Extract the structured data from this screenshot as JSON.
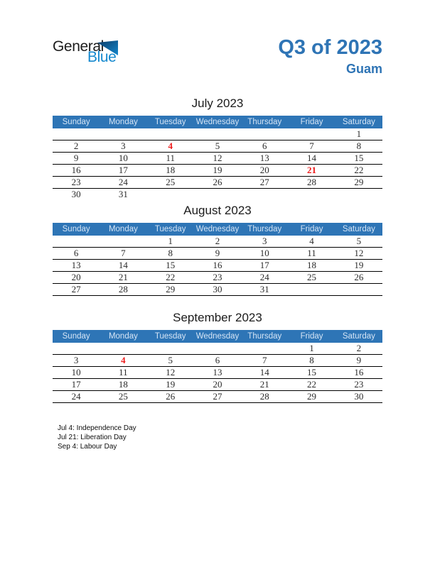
{
  "logo": {
    "word1": "General",
    "word2": "Blue",
    "flag_icon": "flag-triangle"
  },
  "header": {
    "quarter_title": "Q3 of 2023",
    "region": "Guam"
  },
  "colors": {
    "accent_blue": "#2E74B5",
    "header_bar_blue": "#2E75B6",
    "weekday_text": "#D5E5F6",
    "holiday_red": "#EE1C1C",
    "logo_blue": "#1488CE"
  },
  "weekdays": [
    "Sunday",
    "Monday",
    "Tuesday",
    "Wednesday",
    "Thursday",
    "Friday",
    "Saturday"
  ],
  "months": [
    {
      "title": "July 2023",
      "weeks": [
        [
          "",
          "",
          "",
          "",
          "",
          "",
          "1"
        ],
        [
          "2",
          "3",
          "4",
          "5",
          "6",
          "7",
          "8"
        ],
        [
          "9",
          "10",
          "11",
          "12",
          "13",
          "14",
          "15"
        ],
        [
          "16",
          "17",
          "18",
          "19",
          "20",
          "21",
          "22"
        ],
        [
          "23",
          "24",
          "25",
          "26",
          "27",
          "28",
          "29"
        ],
        [
          "30",
          "31",
          "",
          "",
          "",
          "",
          ""
        ]
      ],
      "holidays": [
        "4",
        "21"
      ]
    },
    {
      "title": "August 2023",
      "weeks": [
        [
          "",
          "",
          "1",
          "2",
          "3",
          "4",
          "5"
        ],
        [
          "6",
          "7",
          "8",
          "9",
          "10",
          "11",
          "12"
        ],
        [
          "13",
          "14",
          "15",
          "16",
          "17",
          "18",
          "19"
        ],
        [
          "20",
          "21",
          "22",
          "23",
          "24",
          "25",
          "26"
        ],
        [
          "27",
          "28",
          "29",
          "30",
          "31",
          "",
          ""
        ],
        [
          "",
          "",
          "",
          "",
          "",
          "",
          ""
        ]
      ],
      "holidays": []
    },
    {
      "title": "September 2023",
      "weeks": [
        [
          "",
          "",
          "",
          "",
          "",
          "1",
          "2"
        ],
        [
          "3",
          "4",
          "5",
          "6",
          "7",
          "8",
          "9"
        ],
        [
          "10",
          "11",
          "12",
          "13",
          "14",
          "15",
          "16"
        ],
        [
          "17",
          "18",
          "19",
          "20",
          "21",
          "22",
          "23"
        ],
        [
          "24",
          "25",
          "26",
          "27",
          "28",
          "29",
          "30"
        ],
        [
          "",
          "",
          "",
          "",
          "",
          "",
          ""
        ]
      ],
      "holidays": [
        "4"
      ]
    }
  ],
  "footer": {
    "notes": [
      "Jul 4: Independence Day",
      "Jul 21: Liberation Day",
      "Sep 4: Labour Day"
    ]
  }
}
